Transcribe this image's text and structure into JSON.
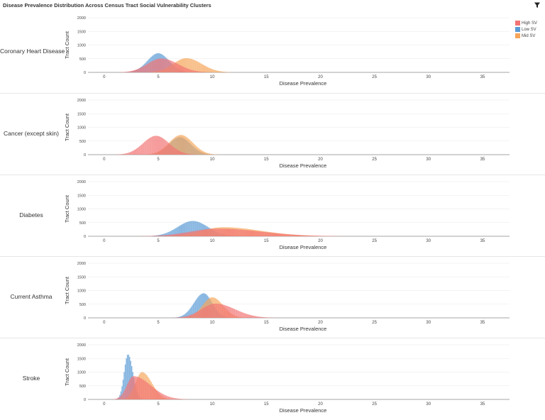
{
  "title": "Disease Prevalence Distribution Across Census Tract Social Vulnerability Clusters",
  "toolbar": {
    "filter_icon": "filter-icon"
  },
  "legend": [
    {
      "label": "High SV",
      "color": "#f27474"
    },
    {
      "label": "Low SV",
      "color": "#5b9bd5"
    },
    {
      "label": "Mid SV",
      "color": "#f5a65b"
    }
  ],
  "chart_data": [
    {
      "type": "histogram",
      "panel_label": "Coronary Heart Disease",
      "xlabel": "Disease Prevalence",
      "ylabel": "Tract Count",
      "xlim": [
        -1.5,
        37.5
      ],
      "ylim": [
        0,
        2000
      ],
      "xticks": [
        0,
        5,
        10,
        15,
        20,
        25,
        30,
        35
      ],
      "yticks": [
        0,
        500,
        1000,
        1500,
        2000
      ],
      "series": [
        {
          "name": "High SV",
          "color": "#f27474",
          "peak_x": 5.3,
          "peak_y": 510,
          "sd_left": 1.3,
          "sd_right": 1.5
        },
        {
          "name": "Low SV",
          "color": "#5b9bd5",
          "peak_x": 5.0,
          "peak_y": 700,
          "sd_left": 1.0,
          "sd_right": 1.0
        },
        {
          "name": "Mid SV",
          "color": "#f5a65b",
          "peak_x": 7.6,
          "peak_y": 520,
          "sd_left": 1.2,
          "sd_right": 1.4
        }
      ]
    },
    {
      "type": "histogram",
      "panel_label": "Cancer (except skin)",
      "xlabel": "Disease Prevalence",
      "ylabel": "Tract Count",
      "xlim": [
        -1.5,
        37.5
      ],
      "ylim": [
        0,
        2000
      ],
      "xticks": [
        0,
        5,
        10,
        15,
        20,
        25,
        30,
        35
      ],
      "yticks": [
        0,
        500,
        1000,
        1500,
        2000
      ],
      "series": [
        {
          "name": "High SV",
          "color": "#f27474",
          "peak_x": 4.8,
          "peak_y": 690,
          "sd_left": 1.2,
          "sd_right": 1.2
        },
        {
          "name": "Low SV",
          "color": "#5b9bd5",
          "peak_x": 7.0,
          "peak_y": 640,
          "sd_left": 1.0,
          "sd_right": 1.0
        },
        {
          "name": "Mid SV",
          "color": "#f5a65b",
          "peak_x": 7.1,
          "peak_y": 720,
          "sd_left": 1.1,
          "sd_right": 1.1
        }
      ]
    },
    {
      "type": "histogram",
      "panel_label": "Diabetes",
      "xlabel": "Disease Prevalence",
      "ylabel": "Tract Count",
      "xlim": [
        -1.5,
        37.5
      ],
      "ylim": [
        0,
        2000
      ],
      "xticks": [
        0,
        5,
        10,
        15,
        20,
        25,
        30,
        35
      ],
      "yticks": [
        0,
        500,
        1000,
        1500,
        2000
      ],
      "series": [
        {
          "name": "High SV",
          "color": "#f27474",
          "peak_x": 10.5,
          "peak_y": 280,
          "sd_left": 2.5,
          "sd_right": 4.0
        },
        {
          "name": "Low SV",
          "color": "#5b9bd5",
          "peak_x": 8.2,
          "peak_y": 560,
          "sd_left": 1.4,
          "sd_right": 1.4
        },
        {
          "name": "Mid SV",
          "color": "#f5a65b",
          "peak_x": 11.0,
          "peak_y": 330,
          "sd_left": 2.0,
          "sd_right": 3.5
        }
      ]
    },
    {
      "type": "histogram",
      "panel_label": "Current Asthma",
      "xlabel": "Disease Prevalence",
      "ylabel": "Tract Count",
      "xlim": [
        -1.5,
        37.5
      ],
      "ylim": [
        0,
        2000
      ],
      "xticks": [
        0,
        5,
        10,
        15,
        20,
        25,
        30,
        35
      ],
      "yticks": [
        0,
        500,
        1000,
        1500,
        2000
      ],
      "series": [
        {
          "name": "High SV",
          "color": "#f27474",
          "peak_x": 10.3,
          "peak_y": 520,
          "sd_left": 1.3,
          "sd_right": 1.8
        },
        {
          "name": "Low SV",
          "color": "#5b9bd5",
          "peak_x": 9.2,
          "peak_y": 900,
          "sd_left": 0.9,
          "sd_right": 0.8
        },
        {
          "name": "Mid SV",
          "color": "#f5a65b",
          "peak_x": 10.0,
          "peak_y": 750,
          "sd_left": 0.9,
          "sd_right": 1.0
        }
      ]
    },
    {
      "type": "histogram",
      "panel_label": "Stroke",
      "xlabel": "Disease Prevalence",
      "ylabel": "Tract Count",
      "xlim": [
        -1.5,
        37.5
      ],
      "ylim": [
        0,
        2000
      ],
      "xticks": [
        0,
        5,
        10,
        15,
        20,
        25,
        30,
        35
      ],
      "yticks": [
        0,
        500,
        1000,
        1500,
        2000
      ],
      "series": [
        {
          "name": "High SV",
          "color": "#f27474",
          "peak_x": 2.7,
          "peak_y": 850,
          "sd_left": 0.6,
          "sd_right": 1.6
        },
        {
          "name": "Low SV",
          "color": "#5b9bd5",
          "peak_x": 2.2,
          "peak_y": 1650,
          "sd_left": 0.35,
          "sd_right": 0.45
        },
        {
          "name": "Mid SV",
          "color": "#f5a65b",
          "peak_x": 3.5,
          "peak_y": 1000,
          "sd_left": 0.6,
          "sd_right": 0.9
        }
      ]
    }
  ]
}
